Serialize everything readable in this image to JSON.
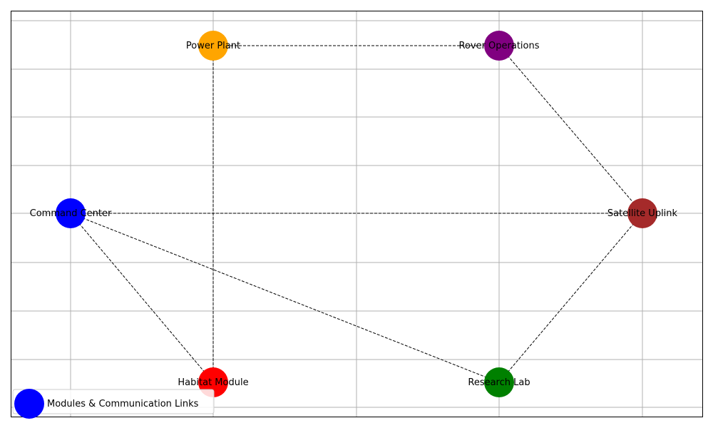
{
  "nodes": [
    {
      "id": "command-center",
      "label": "Command Center",
      "color": "#0000ff"
    },
    {
      "id": "habitat-module",
      "label": "Habitat Module",
      "color": "#ff0000"
    },
    {
      "id": "power-plant",
      "label": "Power Plant",
      "color": "#ffa500"
    },
    {
      "id": "rover-operations",
      "label": "Rover Operations",
      "color": "#800080"
    },
    {
      "id": "research-lab",
      "label": "Research Lab",
      "color": "#008000"
    },
    {
      "id": "satellite-uplink",
      "label": "Satellite Uplink",
      "color": "#a52a2a"
    }
  ],
  "edges": [
    {
      "from": "power-plant",
      "to": "rover-operations",
      "style": "dashed"
    },
    {
      "from": "power-plant",
      "to": "habitat-module",
      "style": "dashed"
    },
    {
      "from": "rover-operations",
      "to": "satellite-uplink",
      "style": "dashed"
    },
    {
      "from": "command-center",
      "to": "satellite-uplink",
      "style": "dashed"
    },
    {
      "from": "command-center",
      "to": "habitat-module",
      "style": "dashed"
    },
    {
      "from": "command-center",
      "to": "research-lab",
      "style": "dashed"
    },
    {
      "from": "satellite-uplink",
      "to": "research-lab",
      "style": "dashed"
    }
  ],
  "legend": {
    "label": "Modules & Communication Links",
    "color": "#0000ff"
  },
  "grid": true
}
